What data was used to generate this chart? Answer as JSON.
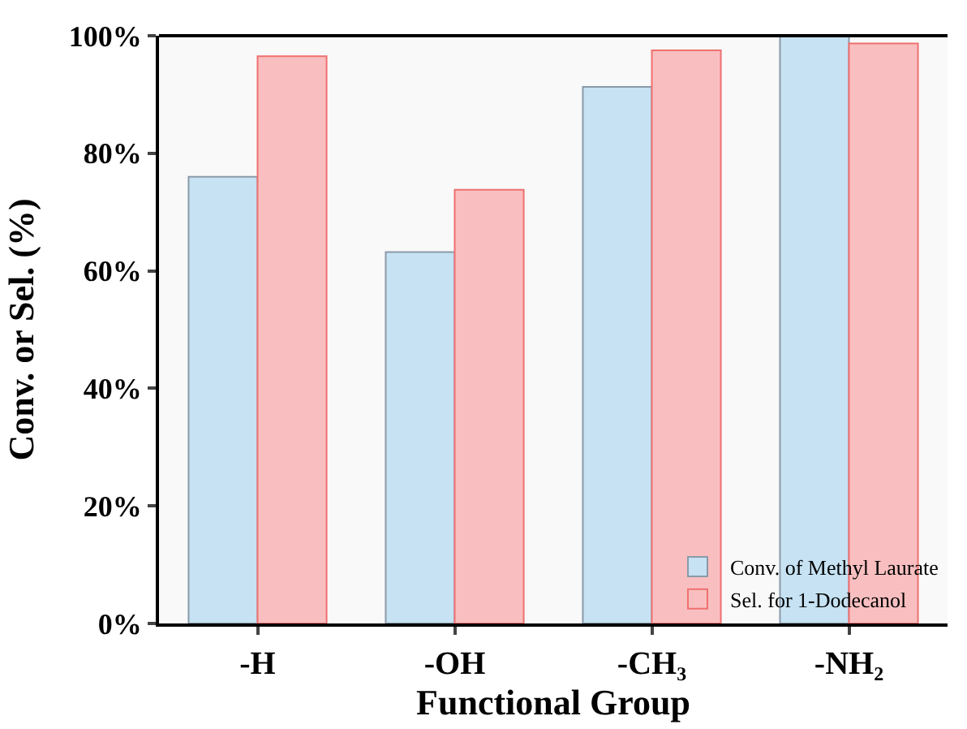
{
  "chart_data": {
    "type": "bar",
    "xlabel": "Functional Group",
    "ylabel": "Conv. or Sel. (%)",
    "categories": [
      "-H",
      "-OH",
      "-CH₃",
      "-NH₂"
    ],
    "series": [
      {
        "name": "Conv. of Methyl Laurate",
        "color": "#c6e2f3",
        "values": [
          76.0,
          63.2,
          91.3,
          100
        ]
      },
      {
        "name": "Sel. for 1-Dodecanol",
        "color": "#f9bfc0",
        "values": [
          96.5,
          73.8,
          97.5,
          98.7
        ]
      }
    ],
    "ylim": [
      0,
      100
    ],
    "yticks": [
      {
        "value": 0,
        "label": "0%"
      },
      {
        "value": 20,
        "label": "20%"
      },
      {
        "value": 40,
        "label": "40%"
      },
      {
        "value": 60,
        "label": "60%"
      },
      {
        "value": 80,
        "label": "80%"
      },
      {
        "value": 100,
        "label": "100%"
      }
    ],
    "grid": false,
    "legend": "bottom right"
  }
}
